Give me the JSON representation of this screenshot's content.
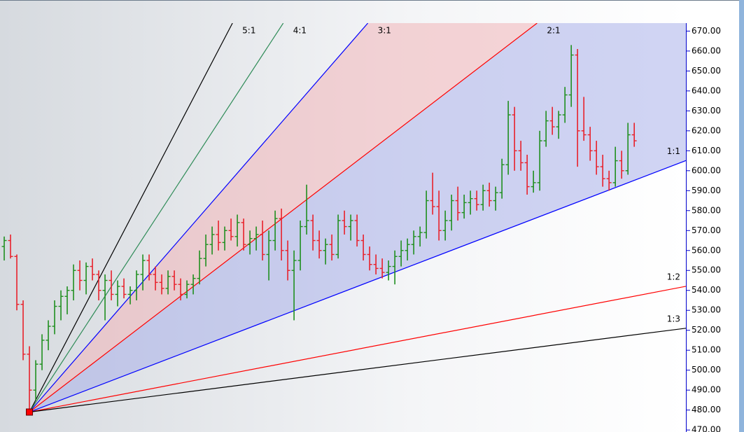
{
  "chart_data": {
    "type": "ohlc",
    "x": [
      0,
      1,
      2,
      3,
      4,
      5,
      6,
      7,
      8,
      9,
      10,
      11,
      12,
      13,
      14,
      15,
      16,
      17,
      18,
      19,
      20,
      21,
      22,
      23,
      24,
      25,
      26,
      27,
      28,
      29,
      30,
      31,
      32,
      33,
      34,
      35,
      36,
      37,
      38,
      39,
      40,
      41,
      42,
      43,
      44,
      45,
      46,
      47,
      48,
      49,
      50,
      51,
      52,
      53,
      54,
      55,
      56,
      57,
      58,
      59,
      60,
      61,
      62,
      63,
      64,
      65,
      66,
      67,
      68,
      69,
      70,
      71,
      72,
      73,
      74,
      75,
      76,
      77,
      78,
      79,
      80,
      81,
      82,
      83,
      84,
      85,
      86,
      87,
      88,
      89,
      90,
      91,
      92,
      93,
      94,
      95,
      96,
      97,
      98,
      99,
      100
    ],
    "open": [
      562,
      565,
      557,
      533,
      508,
      490,
      503,
      515,
      522,
      532,
      537,
      540,
      550,
      545,
      552,
      548,
      540,
      545,
      538,
      542,
      538,
      540,
      548,
      555,
      548,
      544,
      541,
      547,
      543,
      538,
      543,
      546,
      556,
      563,
      568,
      564,
      570,
      567,
      574,
      563,
      566,
      568,
      558,
      565,
      576,
      560,
      550,
      555,
      572,
      575,
      565,
      560,
      563,
      558,
      575,
      572,
      575,
      565,
      558,
      553,
      551,
      549,
      552,
      557,
      560,
      563,
      567,
      569,
      585,
      582,
      570,
      575,
      585,
      579,
      584,
      586,
      583,
      590,
      585,
      589,
      603,
      628,
      610,
      604,
      592,
      594,
      615,
      625,
      622,
      628,
      638,
      658,
      620,
      618,
      610,
      602,
      596,
      594,
      605,
      600,
      618
    ],
    "high": [
      567,
      568,
      558,
      535,
      512,
      505,
      518,
      525,
      535,
      540,
      542,
      553,
      555,
      554,
      556,
      550,
      548,
      550,
      545,
      546,
      542,
      550,
      558,
      558,
      552,
      548,
      550,
      550,
      546,
      545,
      548,
      560,
      568,
      572,
      575,
      572,
      576,
      578,
      576,
      570,
      572,
      575,
      570,
      580,
      581,
      565,
      560,
      575,
      593,
      578,
      570,
      566,
      568,
      578,
      580,
      578,
      578,
      568,
      562,
      558,
      556,
      555,
      560,
      565,
      566,
      570,
      572,
      590,
      599,
      590,
      580,
      588,
      592,
      588,
      590,
      590,
      593,
      594,
      592,
      606,
      635,
      632,
      615,
      608,
      600,
      620,
      630,
      632,
      630,
      642,
      663,
      661,
      637,
      622,
      615,
      608,
      600,
      612,
      610,
      624,
      624
    ],
    "low": [
      555,
      556,
      530,
      505,
      479,
      485,
      500,
      510,
      518,
      525,
      528,
      535,
      540,
      538,
      545,
      535,
      525,
      535,
      532,
      536,
      533,
      535,
      540,
      545,
      540,
      538,
      538,
      540,
      535,
      536,
      538,
      543,
      552,
      558,
      560,
      560,
      565,
      562,
      560,
      558,
      560,
      555,
      545,
      560,
      555,
      545,
      525,
      550,
      568,
      560,
      556,
      553,
      555,
      556,
      568,
      565,
      562,
      555,
      550,
      548,
      546,
      545,
      543,
      552,
      555,
      558,
      562,
      566,
      578,
      565,
      565,
      570,
      575,
      576,
      578,
      580,
      580,
      582,
      580,
      586,
      598,
      600,
      600,
      588,
      589,
      590,
      612,
      618,
      616,
      624,
      632,
      602,
      615,
      605,
      598,
      592,
      590,
      592,
      596,
      598,
      612
    ],
    "close": [
      565,
      557,
      533,
      508,
      490,
      503,
      515,
      522,
      532,
      537,
      540,
      550,
      545,
      552,
      548,
      540,
      545,
      538,
      542,
      538,
      540,
      548,
      555,
      548,
      544,
      541,
      547,
      543,
      538,
      543,
      546,
      556,
      563,
      568,
      564,
      570,
      567,
      574,
      563,
      566,
      568,
      558,
      565,
      576,
      560,
      550,
      555,
      572,
      575,
      565,
      560,
      563,
      558,
      575,
      572,
      575,
      565,
      558,
      553,
      551,
      549,
      552,
      557,
      560,
      563,
      567,
      569,
      585,
      582,
      570,
      575,
      585,
      579,
      584,
      586,
      583,
      590,
      585,
      589,
      603,
      628,
      610,
      604,
      592,
      594,
      615,
      625,
      622,
      628,
      638,
      658,
      620,
      618,
      610,
      602,
      596,
      594,
      605,
      600,
      618,
      615
    ],
    "up_color": "#1f8f1f",
    "down_color": "#e8212b",
    "xlim": [
      -0.67,
      108.2
    ],
    "ylim": [
      469,
      674
    ],
    "yticks": [
      {
        "value": 470,
        "label": "470.00"
      },
      {
        "value": 480,
        "label": "480.00"
      },
      {
        "value": 490,
        "label": "490.00"
      },
      {
        "value": 500,
        "label": "500.00"
      },
      {
        "value": 510,
        "label": "510.00"
      },
      {
        "value": 520,
        "label": "520.00"
      },
      {
        "value": 530,
        "label": "530.00"
      },
      {
        "value": 540,
        "label": "540.00"
      },
      {
        "value": 550,
        "label": "550.00"
      },
      {
        "value": 560,
        "label": "560.00"
      },
      {
        "value": 570,
        "label": "570.00"
      },
      {
        "value": 580,
        "label": "580.00"
      },
      {
        "value": 590,
        "label": "590.00"
      },
      {
        "value": 600,
        "label": "600.00"
      },
      {
        "value": 610,
        "label": "610.00"
      },
      {
        "value": 620,
        "label": "620.00"
      },
      {
        "value": 630,
        "label": "630.00"
      },
      {
        "value": 640,
        "label": "640.00"
      },
      {
        "value": 650,
        "label": "650.00"
      },
      {
        "value": 660,
        "label": "660.00"
      },
      {
        "value": 670,
        "label": "670.00"
      }
    ],
    "fan": {
      "origin": {
        "x": 4,
        "y": 479
      },
      "unit": 1.21,
      "lines": [
        {
          "label": "5:1",
          "ratio": 5,
          "color": "#000000"
        },
        {
          "label": "4:1",
          "ratio": 4,
          "color": "#2e8b57"
        },
        {
          "label": "3:1",
          "ratio": 3,
          "color": "#0000ff"
        },
        {
          "label": "2:1",
          "ratio": 2,
          "color": "#ff0000"
        },
        {
          "label": "1:1",
          "ratio": 1,
          "color": "#0000ff"
        },
        {
          "label": "1:2",
          "ratio": 0.5,
          "color": "#ff0000"
        },
        {
          "label": "1:3",
          "ratio": 0.3333,
          "color": "#000000"
        }
      ]
    }
  }
}
